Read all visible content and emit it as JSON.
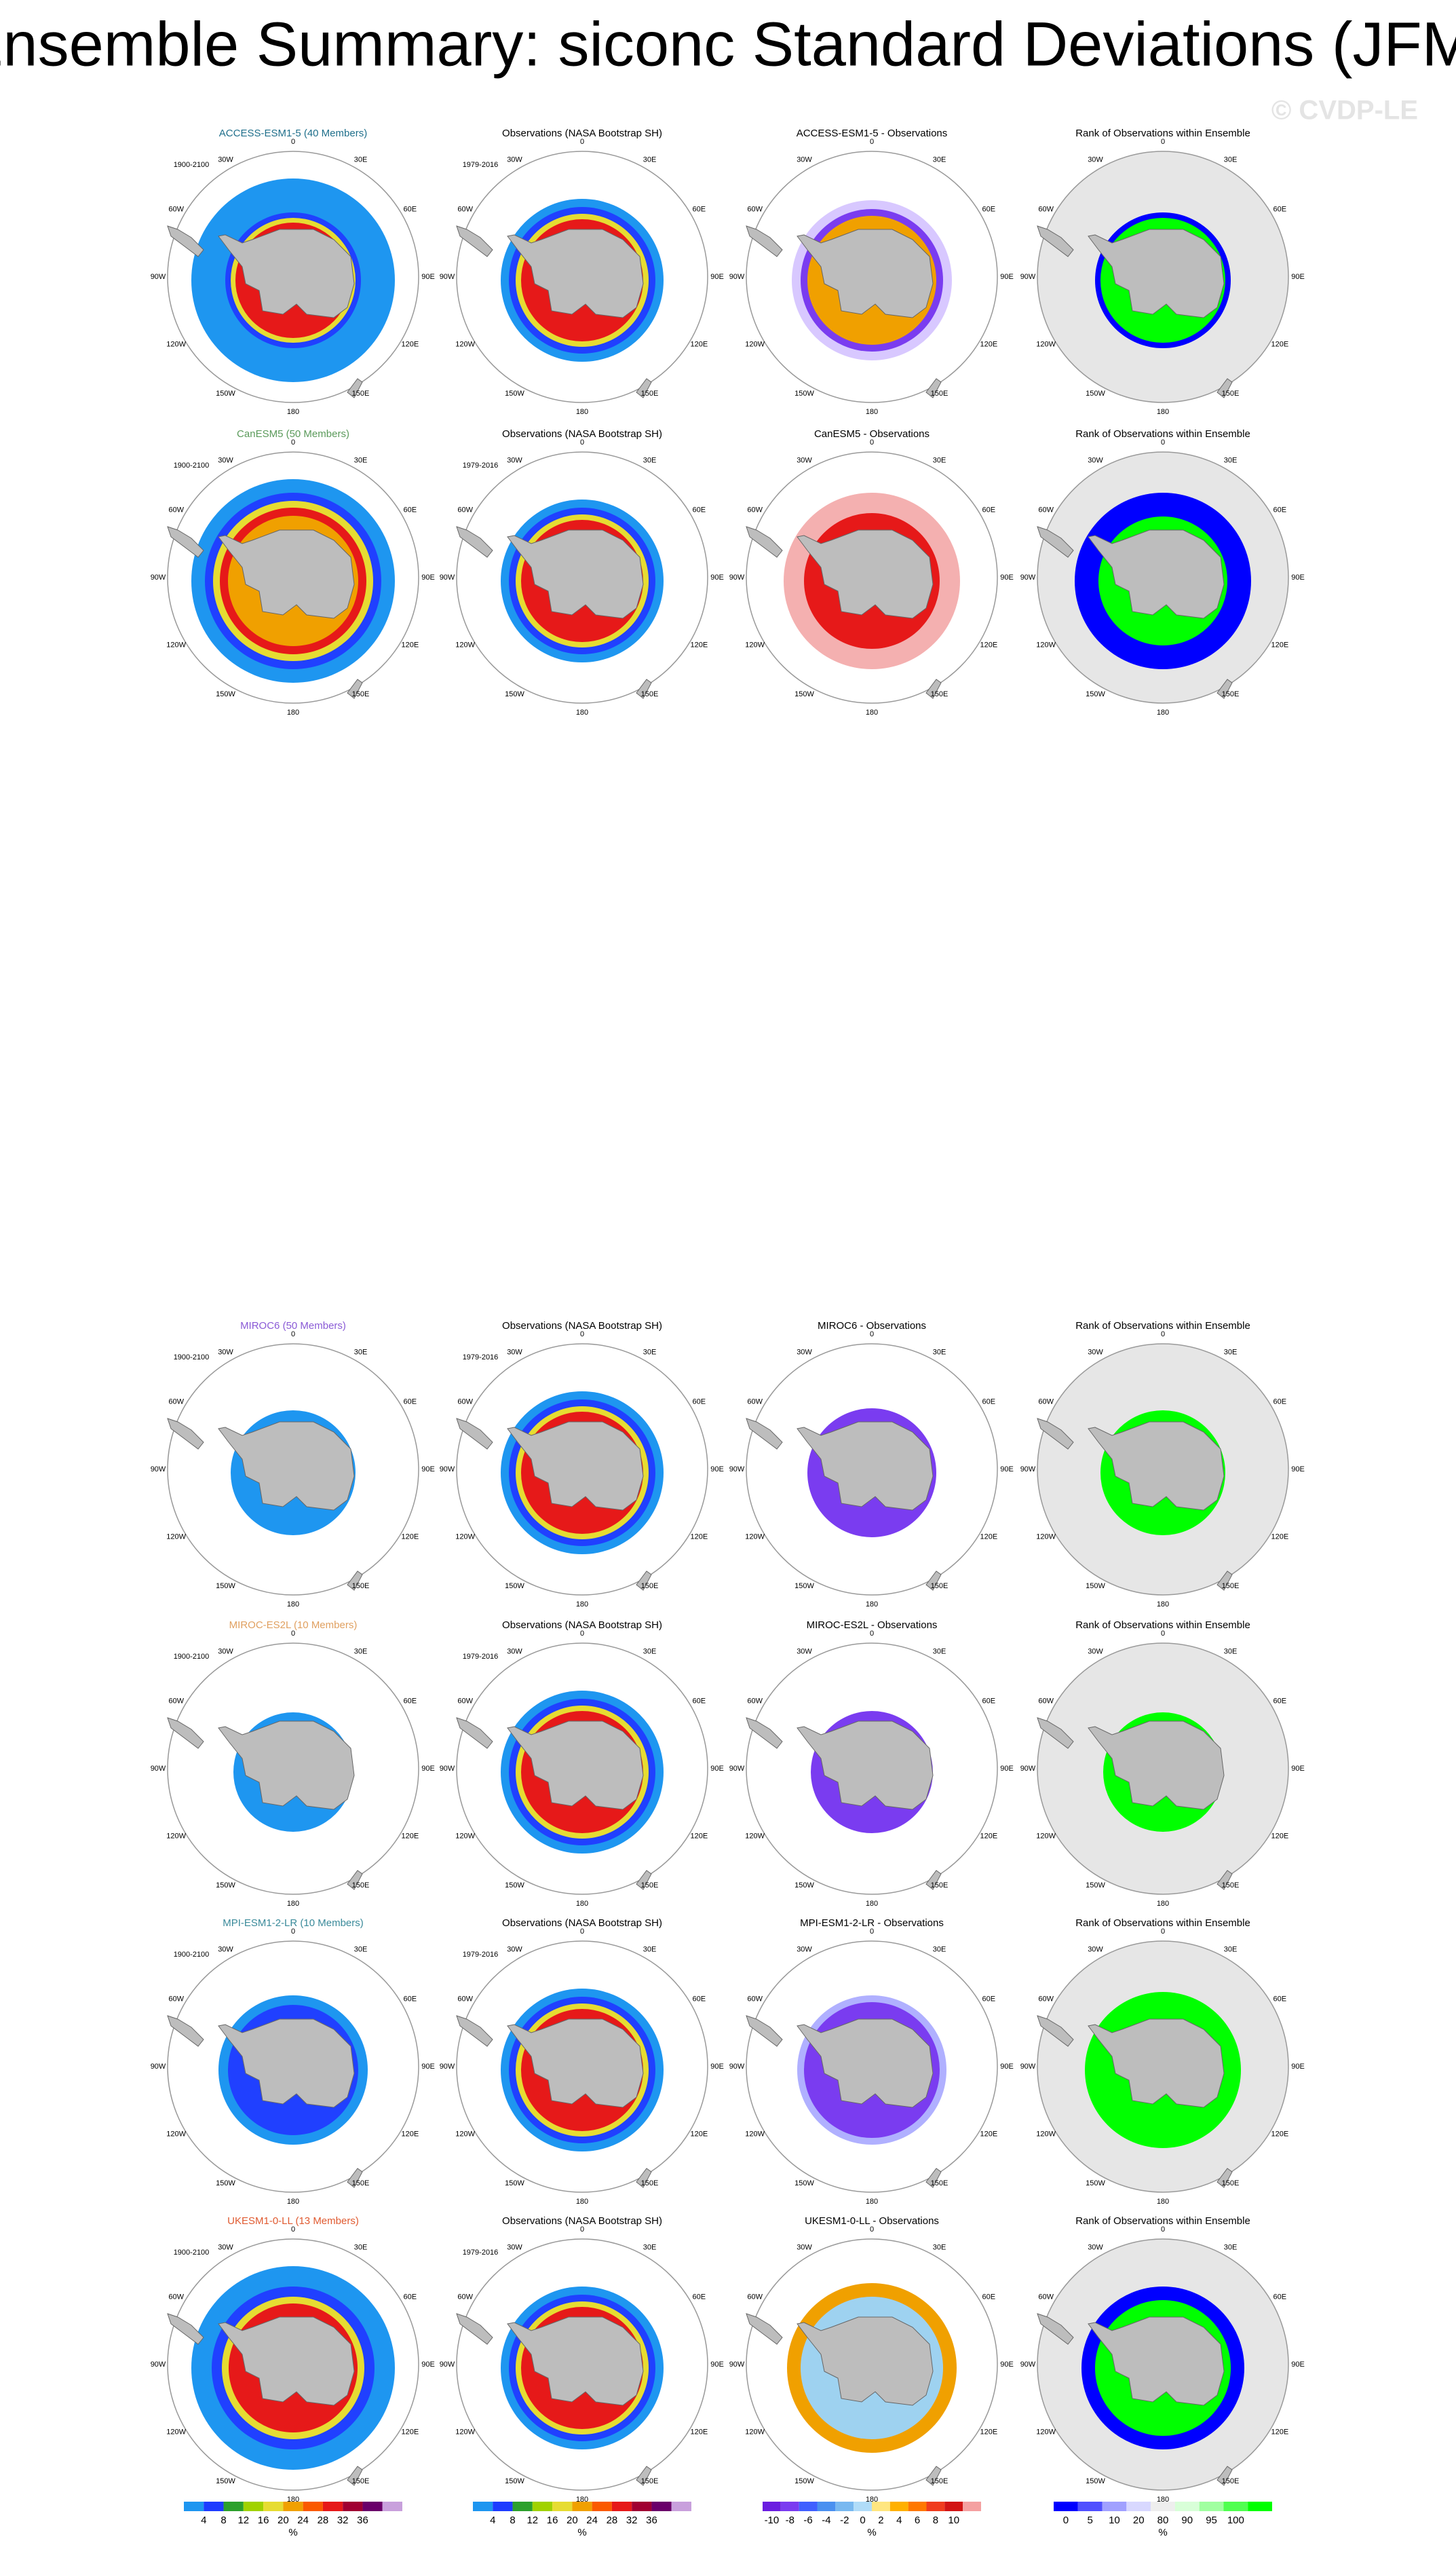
{
  "title": "Ensemble Summary: siconc Standard Deviations (JFM)",
  "watermark": "© CVDP-LE",
  "longitude_labels": [
    "0",
    "30E",
    "60E",
    "90E",
    "120E",
    "150E",
    "180",
    "150W",
    "120W",
    "90W",
    "60W",
    "30W"
  ],
  "rows": [
    {
      "panels": [
        {
          "title": "ACCESS-ESM1-5 (40 Members)",
          "period": "1900-2100"
        },
        {
          "title": "Observations (NASA Bootstrap SH)",
          "period": "1979-2016"
        },
        {
          "title": "ACCESS-ESM1-5 - Observations"
        },
        {
          "title": "Rank of Observations within Ensemble"
        }
      ]
    },
    {
      "panels": [
        {
          "title": "CanESM5 (50 Members)",
          "period": "1900-2100"
        },
        {
          "title": "Observations (NASA Bootstrap SH)",
          "period": "1979-2016"
        },
        {
          "title": "CanESM5 - Observations"
        },
        {
          "title": "Rank of Observations within Ensemble"
        }
      ]
    },
    {
      "panels": [
        {
          "title": "MIROC6 (50 Members)",
          "period": "1900-2100"
        },
        {
          "title": "Observations (NASA Bootstrap SH)",
          "period": "1979-2016"
        },
        {
          "title": "MIROC6 - Observations"
        },
        {
          "title": "Rank of Observations within Ensemble"
        }
      ]
    },
    {
      "panels": [
        {
          "title": "MIROC-ES2L (10 Members)",
          "period": "1900-2100"
        },
        {
          "title": "Observations (NASA Bootstrap SH)",
          "period": "1979-2016"
        },
        {
          "title": "MIROC-ES2L - Observations"
        },
        {
          "title": "Rank of Observations within Ensemble"
        }
      ]
    },
    {
      "panels": [
        {
          "title": "MPI-ESM1-2-LR (10 Members)",
          "period": "1900-2100"
        },
        {
          "title": "Observations (NASA Bootstrap SH)",
          "period": "1979-2016"
        },
        {
          "title": "MPI-ESM1-2-LR - Observations"
        },
        {
          "title": "Rank of Observations within Ensemble"
        }
      ]
    },
    {
      "panels": [
        {
          "title": "UKESM1-0-LL (13 Members)",
          "period": "1900-2100"
        },
        {
          "title": "Observations (NASA Bootstrap SH)",
          "period": "1979-2016"
        },
        {
          "title": "UKESM1-0-LL - Observations"
        },
        {
          "title": "Rank of Observations within Ensemble"
        }
      ]
    }
  ],
  "colorbars": [
    {
      "ticks": [
        4,
        8,
        12,
        16,
        20,
        24,
        28,
        32,
        36
      ],
      "unit": "%"
    },
    {
      "ticks": [
        4,
        8,
        12,
        16,
        20,
        24,
        28,
        32,
        36
      ],
      "unit": "%"
    },
    {
      "ticks": [
        -10,
        -8,
        -6,
        -4,
        -2,
        0,
        2,
        4,
        6,
        8,
        10
      ],
      "unit": "%"
    },
    {
      "ticks": [
        0,
        5,
        10,
        20,
        80,
        90,
        95,
        100
      ],
      "unit": "%"
    }
  ]
}
